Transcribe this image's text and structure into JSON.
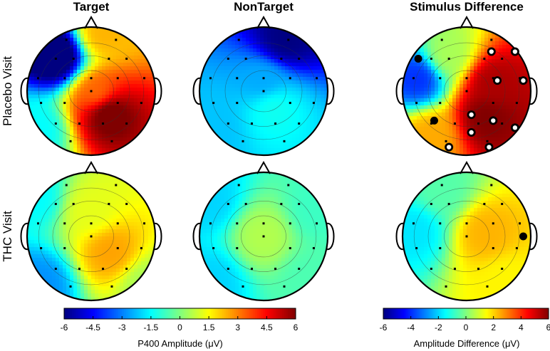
{
  "figure": {
    "columns": [
      "Target",
      "NonTarget",
      "Stimulus Difference"
    ],
    "rows": [
      "Placebo Visit",
      "THC Visit"
    ]
  },
  "colorbars": [
    {
      "title": "P400 Amplitude (μV)",
      "ticks": [
        "-6",
        "-4.5",
        "-3",
        "-1.5",
        "0",
        "1.5",
        "3",
        "4.5",
        "6"
      ],
      "range": [
        -6,
        6
      ]
    },
    {
      "title": "Amplitude Difference (μV)",
      "ticks": [
        "-6",
        "-4",
        "-2",
        "0",
        "2",
        "4",
        "6"
      ],
      "range": [
        -6,
        6
      ]
    }
  ],
  "chart_data": {
    "type": "heatmap",
    "description_units": "μV",
    "colormap": "jet",
    "topomaps": [
      {
        "row": "Placebo Visit",
        "col": "Target",
        "scale": [
          -6,
          6
        ],
        "sources": [
          {
            "x": 0.18,
            "y": 0.9,
            "v": 2.4
          },
          {
            "x": -0.55,
            "y": 0.55,
            "v": -7
          },
          {
            "x": 0.1,
            "y": -0.05,
            "v": 3.2
          },
          {
            "x": 0.25,
            "y": -0.32,
            "v": 6.5
          },
          {
            "x": -0.85,
            "y": -0.6,
            "v": -1.5
          }
        ],
        "significant_electrodes": []
      },
      {
        "row": "Placebo Visit",
        "col": "NonTarget",
        "scale": [
          -6,
          6
        ],
        "sources": [
          {
            "x": 0.35,
            "y": 0.8,
            "v": -6
          },
          {
            "x": 0.0,
            "y": 0.15,
            "v": -2.5
          },
          {
            "x": 0.15,
            "y": -0.25,
            "v": -1.3
          },
          {
            "x": -0.8,
            "y": -0.55,
            "v": -2.2
          }
        ],
        "significant_electrodes": []
      },
      {
        "row": "Placebo Visit",
        "col": "Stimulus Difference",
        "scale": [
          -6,
          6
        ],
        "sources": [
          {
            "x": -0.75,
            "y": 0.2,
            "v": -4
          },
          {
            "x": -0.3,
            "y": 0.55,
            "v": 0.5
          },
          {
            "x": 0.4,
            "y": 0.1,
            "v": 5.5
          },
          {
            "x": 0.3,
            "y": -0.4,
            "v": 6.0
          },
          {
            "x": -0.55,
            "y": -0.7,
            "v": 2.5
          }
        ],
        "significant_electrodes": [
          {
            "x": -0.82,
            "y": 0.55,
            "fill": "black"
          },
          {
            "x": 0.42,
            "y": 0.67,
            "fill": "white"
          },
          {
            "x": 0.82,
            "y": 0.67,
            "fill": "white"
          },
          {
            "x": 0.52,
            "y": 0.18,
            "fill": "white"
          },
          {
            "x": 0.96,
            "y": 0.18,
            "fill": "white"
          },
          {
            "x": -0.55,
            "y": -0.5,
            "fill": "black"
          },
          {
            "x": 0.08,
            "y": -0.4,
            "fill": "white"
          },
          {
            "x": 0.08,
            "y": -0.7,
            "fill": "white"
          },
          {
            "x": 0.45,
            "y": -0.5,
            "fill": "white"
          },
          {
            "x": 0.82,
            "y": -0.62,
            "fill": "white"
          },
          {
            "x": -0.3,
            "y": -0.95,
            "fill": "white"
          },
          {
            "x": 0.38,
            "y": -0.95,
            "fill": "white"
          }
        ]
      },
      {
        "row": "THC Visit",
        "col": "Target",
        "scale": [
          -6,
          6
        ],
        "sources": [
          {
            "x": 0.0,
            "y": 0.4,
            "v": 1.2
          },
          {
            "x": 0.3,
            "y": -0.25,
            "v": 2.6
          },
          {
            "x": -0.9,
            "y": 0.6,
            "v": -1.5
          },
          {
            "x": -0.8,
            "y": -0.75,
            "v": -2.8
          },
          {
            "x": 0.85,
            "y": -0.75,
            "v": 0.5
          }
        ],
        "significant_electrodes": []
      },
      {
        "row": "THC Visit",
        "col": "NonTarget",
        "scale": [
          -6,
          6
        ],
        "sources": [
          {
            "x": 0.0,
            "y": 0.0,
            "v": 0.6
          },
          {
            "x": -0.85,
            "y": 0.55,
            "v": -2.0
          },
          {
            "x": 0.8,
            "y": 0.4,
            "v": -0.8
          },
          {
            "x": -0.8,
            "y": -0.7,
            "v": -2.0
          },
          {
            "x": 0.7,
            "y": -0.65,
            "v": -0.6
          }
        ],
        "significant_electrodes": []
      },
      {
        "row": "THC Visit",
        "col": "Stimulus Difference",
        "scale": [
          -6,
          6
        ],
        "sources": [
          {
            "x": 0.3,
            "y": 0.05,
            "v": 2.4
          },
          {
            "x": -0.8,
            "y": 0.1,
            "v": -1.8
          },
          {
            "x": -0.4,
            "y": 0.7,
            "v": -0.5
          },
          {
            "x": 0.6,
            "y": -0.7,
            "v": 1.6
          }
        ],
        "significant_electrodes": [
          {
            "x": 0.96,
            "y": 0.0,
            "fill": "black"
          }
        ]
      }
    ],
    "electrodes": [
      {
        "x": -0.42,
        "y": 0.87
      },
      {
        "x": 0.42,
        "y": 0.87
      },
      {
        "x": -0.6,
        "y": 0.55
      },
      {
        "x": -0.3,
        "y": 0.55
      },
      {
        "x": 0.3,
        "y": 0.55
      },
      {
        "x": 0.6,
        "y": 0.55
      },
      {
        "x": -0.9,
        "y": 0.22
      },
      {
        "x": -0.45,
        "y": 0.22
      },
      {
        "x": 0.0,
        "y": 0.22
      },
      {
        "x": 0.45,
        "y": 0.22
      },
      {
        "x": 0.9,
        "y": 0.22
      },
      {
        "x": -0.85,
        "y": -0.2
      },
      {
        "x": -0.45,
        "y": -0.2
      },
      {
        "x": 0.0,
        "y": 0.0
      },
      {
        "x": 0.45,
        "y": -0.2
      },
      {
        "x": 0.85,
        "y": -0.2
      },
      {
        "x": -0.6,
        "y": -0.55
      },
      {
        "x": -0.2,
        "y": -0.55
      },
      {
        "x": 0.2,
        "y": -0.55
      },
      {
        "x": 0.6,
        "y": -0.55
      },
      {
        "x": -0.35,
        "y": -0.85
      },
      {
        "x": 0.35,
        "y": -0.85
      }
    ]
  }
}
